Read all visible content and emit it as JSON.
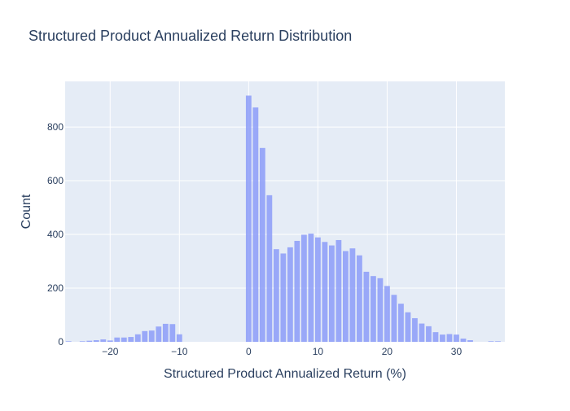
{
  "chart_data": {
    "type": "bar",
    "title": "Structured Product Annualized Return Distribution",
    "xlabel": "Structured Product Annualized Return (%)",
    "ylabel": "Count",
    "xlim": [
      -26.5,
      37
    ],
    "ylim": [
      0,
      970
    ],
    "x_ticks": [
      -20,
      -10,
      0,
      10,
      20,
      30
    ],
    "x_tick_labels": [
      "−20",
      "−10",
      "0",
      "10",
      "20",
      "30"
    ],
    "y_ticks": [
      0,
      200,
      400,
      600,
      800
    ],
    "y_tick_labels": [
      "0",
      "200",
      "400",
      "600",
      "800"
    ],
    "grid": true,
    "bin_width": 1,
    "bins": [
      {
        "x": -26,
        "y": 2
      },
      {
        "x": -25,
        "y": 0
      },
      {
        "x": -24,
        "y": 2
      },
      {
        "x": -23,
        "y": 4
      },
      {
        "x": -22,
        "y": 6
      },
      {
        "x": -21,
        "y": 9
      },
      {
        "x": -20,
        "y": 5
      },
      {
        "x": -19,
        "y": 16
      },
      {
        "x": -18,
        "y": 16
      },
      {
        "x": -17,
        "y": 18
      },
      {
        "x": -16,
        "y": 28
      },
      {
        "x": -15,
        "y": 40
      },
      {
        "x": -14,
        "y": 42
      },
      {
        "x": -13,
        "y": 57
      },
      {
        "x": -12,
        "y": 67
      },
      {
        "x": -11,
        "y": 66
      },
      {
        "x": -10,
        "y": 28
      },
      {
        "x": 0,
        "y": 917
      },
      {
        "x": 1,
        "y": 873
      },
      {
        "x": 2,
        "y": 722
      },
      {
        "x": 3,
        "y": 546
      },
      {
        "x": 4,
        "y": 345
      },
      {
        "x": 5,
        "y": 329
      },
      {
        "x": 6,
        "y": 352
      },
      {
        "x": 7,
        "y": 376
      },
      {
        "x": 8,
        "y": 399
      },
      {
        "x": 9,
        "y": 403
      },
      {
        "x": 10,
        "y": 389
      },
      {
        "x": 11,
        "y": 372
      },
      {
        "x": 12,
        "y": 359
      },
      {
        "x": 13,
        "y": 379
      },
      {
        "x": 14,
        "y": 338
      },
      {
        "x": 15,
        "y": 348
      },
      {
        "x": 16,
        "y": 322
      },
      {
        "x": 17,
        "y": 261
      },
      {
        "x": 18,
        "y": 245
      },
      {
        "x": 19,
        "y": 237
      },
      {
        "x": 20,
        "y": 208
      },
      {
        "x": 21,
        "y": 175
      },
      {
        "x": 22,
        "y": 142
      },
      {
        "x": 23,
        "y": 110
      },
      {
        "x": 24,
        "y": 88
      },
      {
        "x": 25,
        "y": 68
      },
      {
        "x": 26,
        "y": 58
      },
      {
        "x": 27,
        "y": 36
      },
      {
        "x": 28,
        "y": 27
      },
      {
        "x": 29,
        "y": 29
      },
      {
        "x": 30,
        "y": 27
      },
      {
        "x": 31,
        "y": 12
      },
      {
        "x": 32,
        "y": 6
      },
      {
        "x": 33,
        "y": 0
      },
      {
        "x": 34,
        "y": 0
      },
      {
        "x": 35,
        "y": 2
      },
      {
        "x": 36,
        "y": 2
      }
    ],
    "colors": {
      "bar": "#8c9cf8",
      "plot_bg": "#e5ecf6",
      "grid": "#ffffff",
      "text": "#2a3f5f"
    }
  }
}
